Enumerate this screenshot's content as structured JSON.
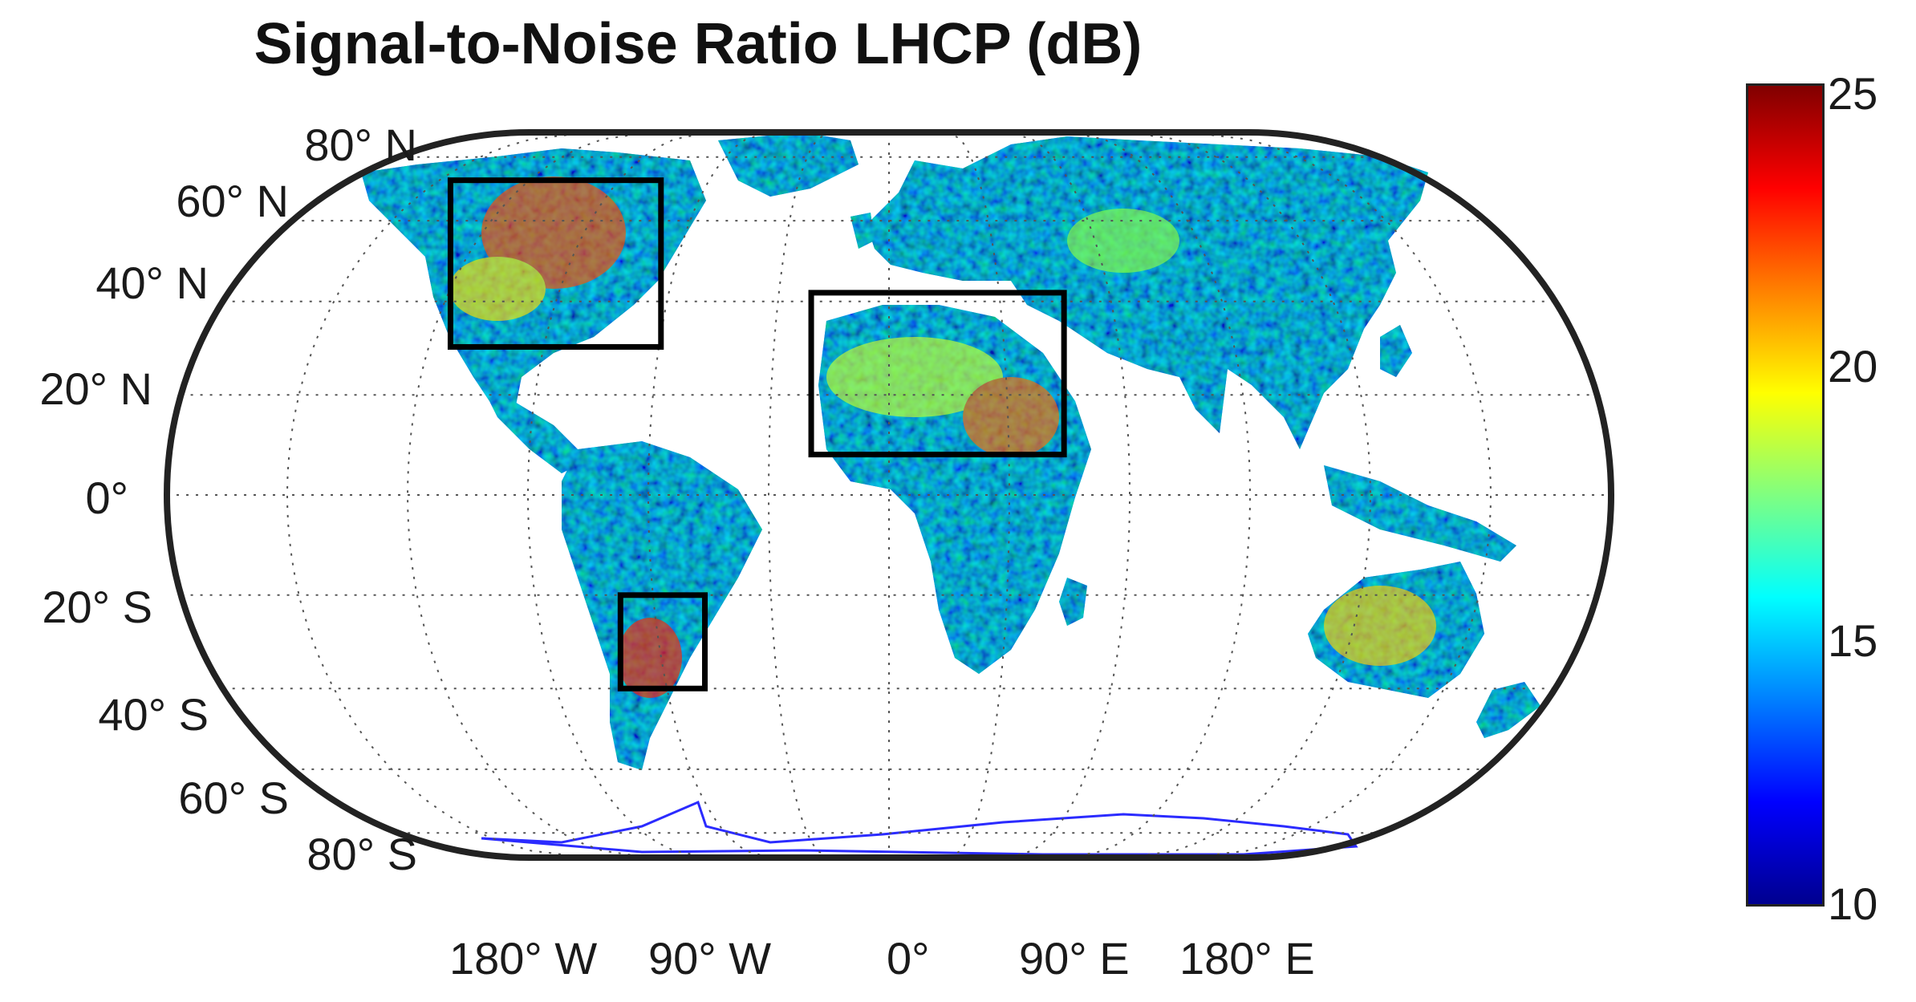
{
  "title": "Signal-to-Noise Ratio LHCP (dB)",
  "projection": "Eckert IV (pseudocylindrical, rounded sides)",
  "lat_labels": [
    "80° N",
    "60° N",
    "40° N",
    "20° N",
    "0°",
    "20° S",
    "40° S",
    "60° S",
    "80° S"
  ],
  "lon_labels": [
    "180° W",
    "90° W",
    "0°",
    "90° E",
    "180° E"
  ],
  "colorbar": {
    "min": 10,
    "max": 25,
    "ticks": [
      "25",
      "20",
      "15",
      "10"
    ],
    "colormap": "jet",
    "colors": [
      "#00008f",
      "#0000ff",
      "#0080ff",
      "#00ffff",
      "#80ff80",
      "#ffff00",
      "#ff8000",
      "#ff0000",
      "#800000"
    ]
  },
  "highlight_regions": [
    {
      "name": "north-america-box",
      "lon": [
        -125,
        -65
      ],
      "lat": [
        30,
        72
      ]
    },
    {
      "name": "sahara-box",
      "lon": [
        -20,
        45
      ],
      "lat": [
        8,
        42
      ]
    },
    {
      "name": "south-america-box",
      "lon": [
        -70,
        -48
      ],
      "lat": [
        -40,
        -20
      ]
    }
  ],
  "colors": {
    "frame": "#222222",
    "grid": "#555555",
    "land_base": "#1a5cf5",
    "antarctica_outline": "#2b2bff"
  }
}
